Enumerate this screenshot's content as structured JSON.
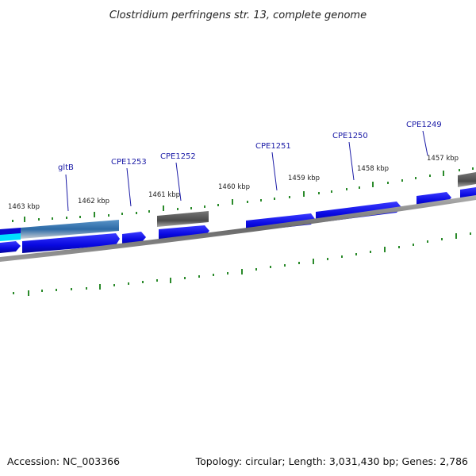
{
  "title": "Clostridium perfringens str. 13, complete genome",
  "footer": {
    "accession": "Accession: NC_003366",
    "summary": "Topology: circular; Length: 3,031,430 bp; Genes: 2,786"
  },
  "colors": {
    "forward_gene": "#0a0ae6",
    "forward_gene_dark": "#06069a",
    "gray_gene": "#5a5a5a",
    "gray_gene_light": "#9a9a9a",
    "selected_fill": "#3a7ab8",
    "selected_light": "#c0c8d0",
    "cyan": "#00e0ff",
    "backbone": "#8a8a8a",
    "backbone_dark": "#555555",
    "tick": "#2a8a2a",
    "label": "#1a1aa6"
  },
  "scale": {
    "units": "kbp",
    "ticks": [
      {
        "kbp": 1463,
        "label": "1463 kbp"
      },
      {
        "kbp": 1462,
        "label": "1462 kbp"
      },
      {
        "kbp": 1461,
        "label": "1461 kbp"
      },
      {
        "kbp": 1460,
        "label": "1460 kbp"
      },
      {
        "kbp": 1459,
        "label": "1459 kbp"
      },
      {
        "kbp": 1458,
        "label": "1458 kbp"
      },
      {
        "kbp": 1457,
        "label": "1457 kbp"
      }
    ]
  },
  "genes": [
    {
      "label": "gltB"
    },
    {
      "label": "CPE1253"
    },
    {
      "label": "CPE1252"
    },
    {
      "label": "CPE1251"
    },
    {
      "label": "CPE1250"
    },
    {
      "label": "CPE1249"
    }
  ]
}
